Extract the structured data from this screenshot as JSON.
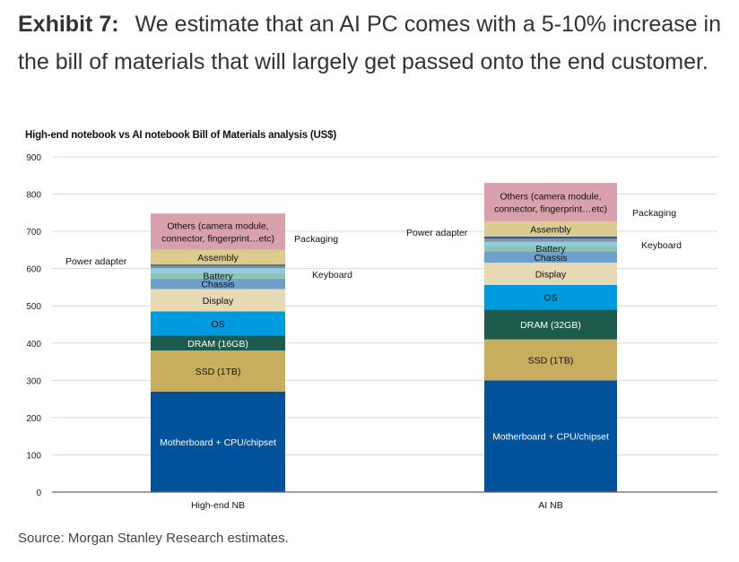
{
  "heading": {
    "label": "Exhibit 7:",
    "text": "We estimate that an AI PC comes with a 5-10% increase in the bill of materials that will largely get passed onto the end customer."
  },
  "source": "Source: Morgan Stanley Research estimates.",
  "chart_data": {
    "type": "bar",
    "stacked": true,
    "title": "High-end notebook vs AI notebook Bill of Materials analysis (US$)",
    "xlabel": "",
    "ylabel": "",
    "ylim": [
      0,
      900
    ],
    "yticks": [
      0,
      100,
      200,
      300,
      400,
      500,
      600,
      700,
      800,
      900
    ],
    "grid": true,
    "legend": "none (labels on bars)",
    "categories": [
      "High-end NB",
      "AI NB"
    ],
    "series": [
      {
        "name": "Motherboard + CPU/chipset",
        "label_inside": true,
        "color": "#00539b",
        "text_color": "#ffffff",
        "values": [
          270,
          300
        ]
      },
      {
        "name": "SSD (1TB)",
        "label_inside": true,
        "color": "#c9ad5f",
        "text_color": "#111111",
        "values": [
          110,
          110
        ]
      },
      {
        "name": "DRAM",
        "labels": [
          "DRAM (16GB)",
          "DRAM (32GB)"
        ],
        "label_inside": true,
        "color": "#1d5c4d",
        "text_color": "#ffffff",
        "values": [
          40,
          80
        ]
      },
      {
        "name": "OS",
        "label_inside": true,
        "color": "#009ade",
        "text_color": "#111111",
        "values": [
          65,
          66
        ]
      },
      {
        "name": "Display",
        "label_inside": true,
        "color": "#e6d9b3",
        "text_color": "#111111",
        "values": [
          60,
          60
        ]
      },
      {
        "name": "Chassis",
        "label_inside": true,
        "color": "#6f9fcb",
        "text_color": "#111111",
        "values": [
          28,
          30
        ]
      },
      {
        "name": "Battery",
        "label_inside": true,
        "color": "#8fc3b4",
        "text_color": "#111111",
        "values": [
          16,
          16
        ]
      },
      {
        "name": "Keyboard",
        "label_inside": false,
        "color": "#87ceeb",
        "values": [
          12,
          10
        ]
      },
      {
        "name": "Power adapter",
        "label_inside": false,
        "color": "#8a8f99",
        "values": [
          6,
          9
        ]
      },
      {
        "name": "Packaging",
        "label_inside": false,
        "color": "#2c5b8f",
        "values": [
          4,
          5
        ]
      },
      {
        "name": "Assembly",
        "label_inside": true,
        "color": "#dccb8e",
        "text_color": "#111111",
        "values": [
          40,
          41
        ]
      },
      {
        "name": "Others (camera module, connector, fingerprint…etc)",
        "labels_lines": [
          "Others (camera module,",
          "connector, fingerprint…etc)"
        ],
        "label_inside": true,
        "color": "#d9a0ad",
        "text_color": "#111111",
        "values": [
          97,
          103
        ]
      }
    ]
  }
}
